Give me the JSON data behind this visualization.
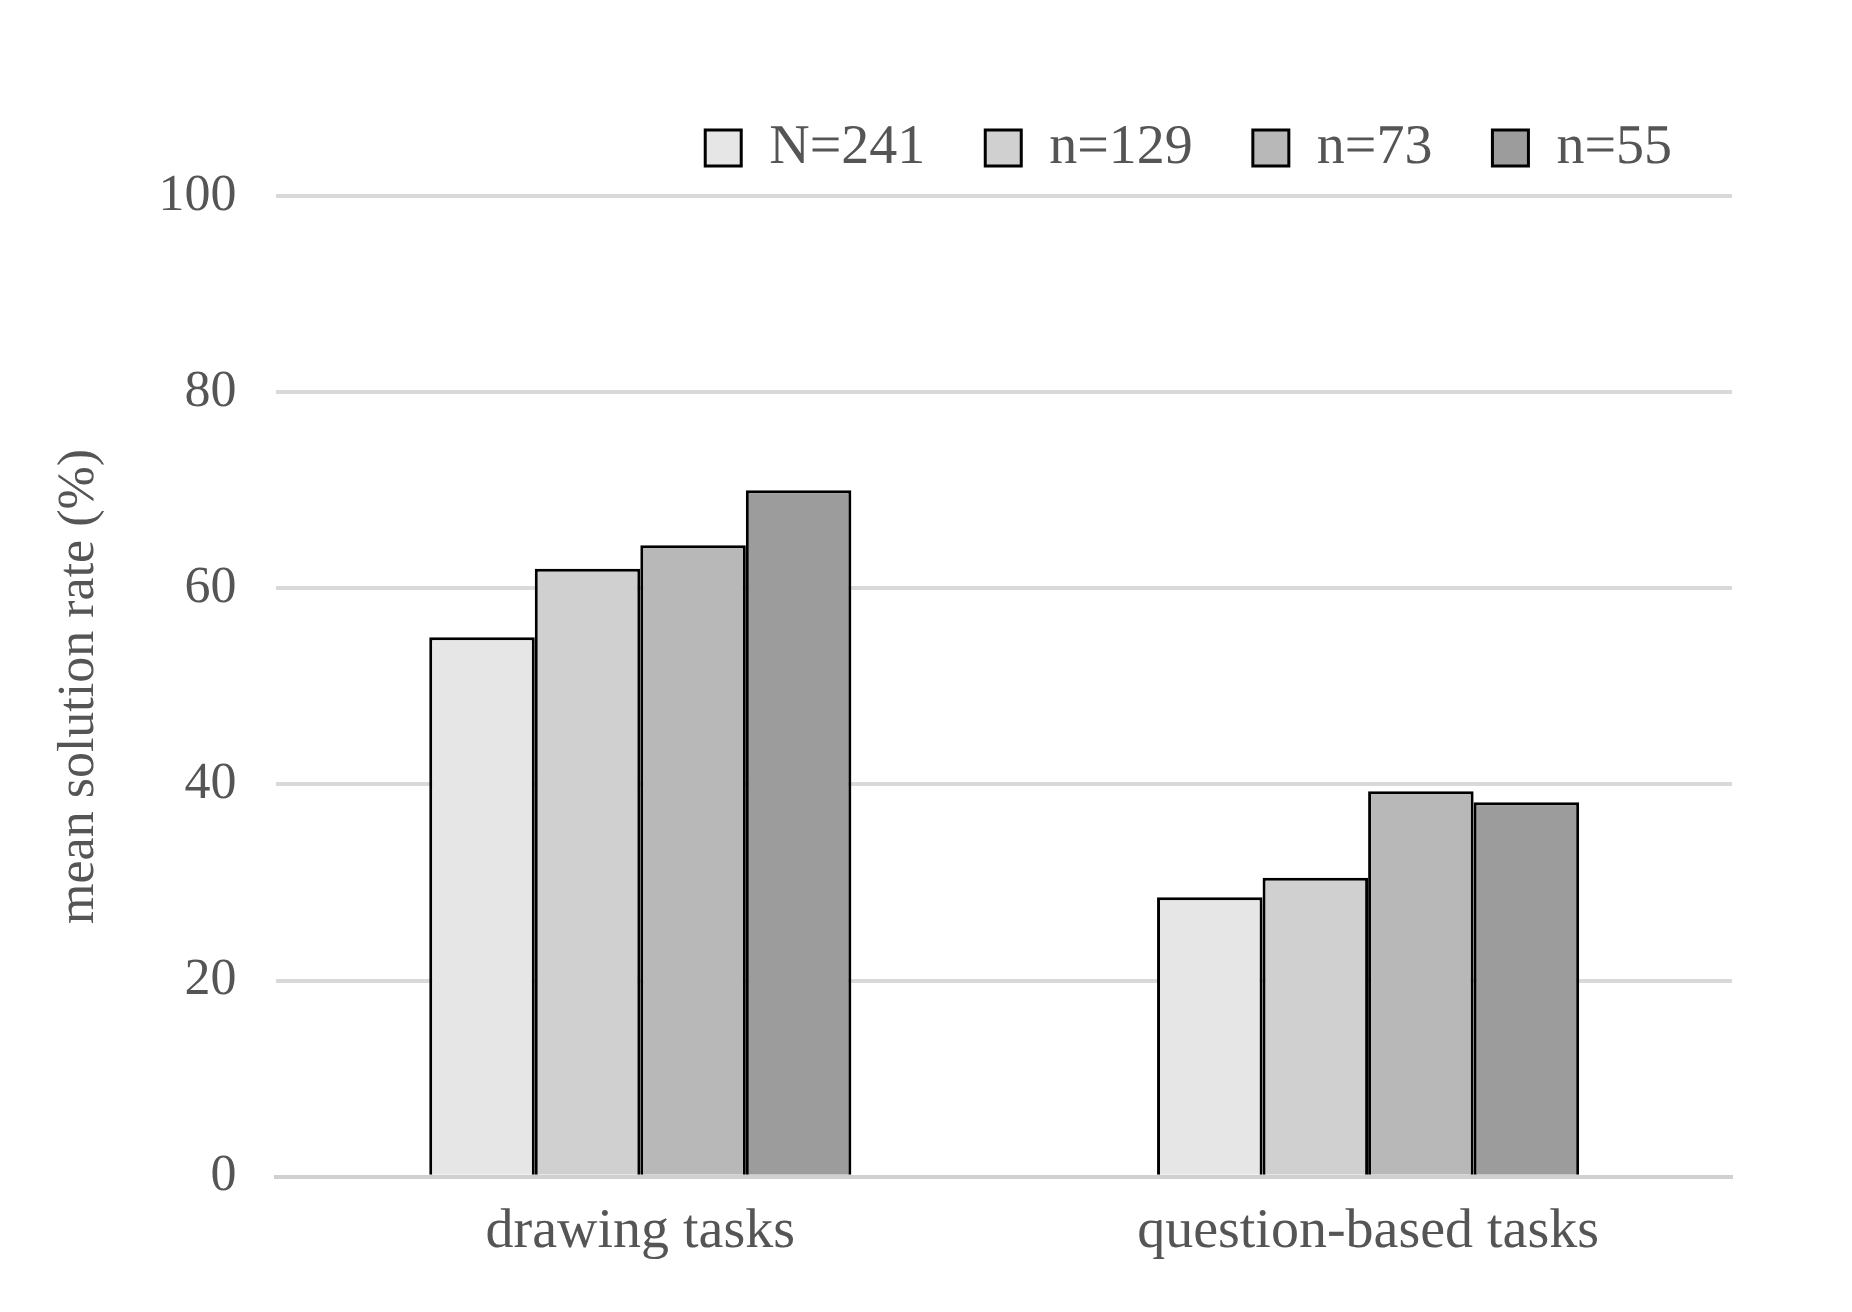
{
  "chart_data": {
    "type": "bar",
    "ylabel": "mean solution rate (%)",
    "categories": [
      "drawing tasks",
      "question-based tasks"
    ],
    "series": [
      {
        "name": "N=241",
        "color": "#e6e6e6",
        "values": [
          55,
          28.5
        ]
      },
      {
        "name": "n=129",
        "color": "#d0d0d0",
        "values": [
          62,
          30.5
        ]
      },
      {
        "name": "n=73",
        "color": "#b8b8b8",
        "values": [
          64.4,
          39.3
        ]
      },
      {
        "name": "n=55",
        "color": "#9c9c9c",
        "values": [
          70,
          38.2
        ]
      }
    ],
    "ylim": [
      0,
      100
    ],
    "yticks": [
      0,
      20,
      40,
      60,
      80,
      100
    ],
    "grid": "y",
    "legend": "top right"
  }
}
